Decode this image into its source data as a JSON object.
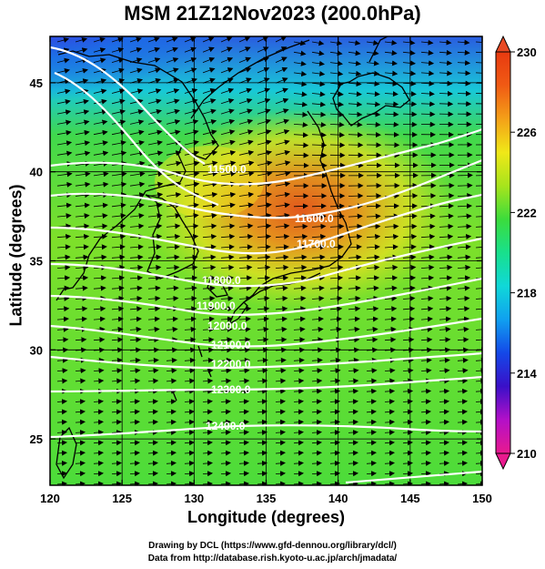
{
  "title": "MSM 21Z12Nov2023 (200.0hPa)",
  "map": {
    "xlabel": "Longitude (degrees)",
    "ylabel": "Latitude  (degrees)",
    "x_ticks": [
      "120",
      "125",
      "130",
      "135",
      "140",
      "145",
      "150"
    ],
    "y_ticks": [
      "25",
      "30",
      "35",
      "40",
      "45"
    ],
    "lon_range": [
      120,
      150
    ],
    "lat_range": [
      22.4,
      47.6
    ],
    "contour_labels": [
      "11500.0",
      "11600.0",
      "11700.0",
      "11800.0",
      "11900.0",
      "12000.0",
      "12100.0",
      "12200.0",
      "12300.0",
      "12400.0"
    ],
    "colorbar": {
      "min": 210,
      "max": 230,
      "tick_labels": [
        "230",
        "226",
        "222",
        "218",
        "214",
        "210"
      ],
      "colors": [
        "#e81a8e",
        "#b410c8",
        "#3a10c8",
        "#1448e8",
        "#10a0f0",
        "#10d8d8",
        "#18e08c",
        "#3cdc3c",
        "#a8e41c",
        "#f0e818",
        "#f4a018",
        "#f05a14",
        "#e83a10"
      ]
    }
  },
  "credits": {
    "line1": "Drawing by DCL (https://www.gfd-dennou.org/library/dcl/)",
    "line2": "Data from http://database.rish.kyoto-u.ac.jp/arch/jmadata/"
  }
}
